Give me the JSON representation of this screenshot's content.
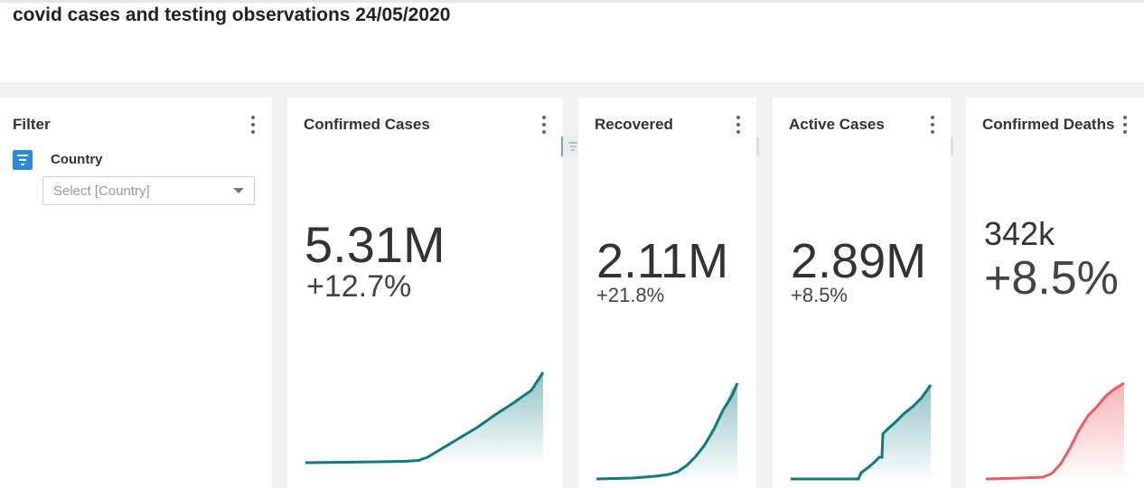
{
  "header": {
    "title": "covid cases and testing observations 24/05/2020"
  },
  "filter_card": {
    "title": "Filter",
    "filter_label": "Country",
    "select_placeholder": "Select [Country]"
  },
  "kpis": [
    {
      "title": "Confirmed Cases",
      "value": "5.31M",
      "change": "+12.7%"
    },
    {
      "title": "Recovered",
      "value": "2.11M",
      "change": "+21.8%"
    },
    {
      "title": "Active Cases",
      "value": "2.89M",
      "change": "+8.5%"
    },
    {
      "title": "Confirmed Deaths",
      "value": "342k",
      "change": "+8.5%"
    }
  ],
  "colors": {
    "teal": "#117a80",
    "red": "#ec5a62"
  }
}
